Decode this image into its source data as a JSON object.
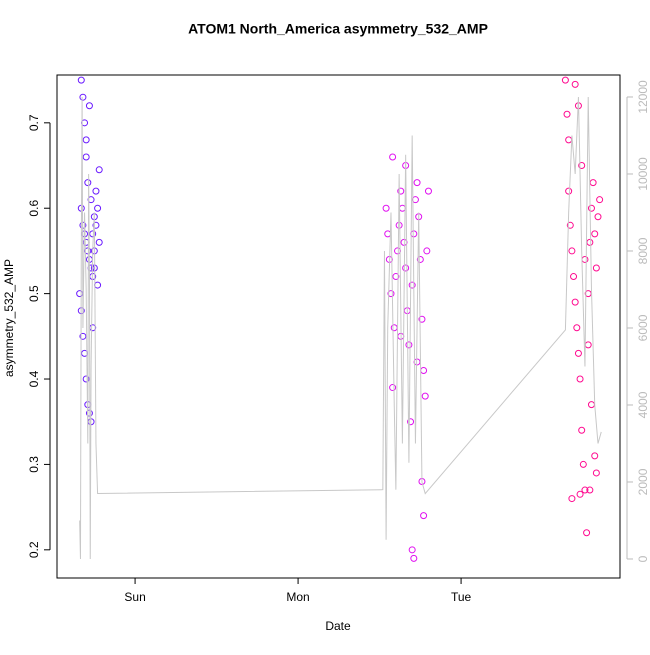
{
  "chart_data": {
    "type": "scatter",
    "title": "ATOM1 North_America asymmetry_532_AMP",
    "x_label": "Date",
    "y_label": "asymmetry_532_AMP",
    "xlim": [
      -0.479,
      2.975
    ],
    "xticks": [
      {
        "value": 0,
        "label": "Sun"
      },
      {
        "value": 1,
        "label": "Mon"
      },
      {
        "value": 2,
        "label": "Tue"
      }
    ],
    "ylim": [
      0.167,
      0.756
    ],
    "yticks": [
      0.2,
      0.3,
      0.4,
      0.5,
      0.6,
      0.7
    ],
    "y2lim": [
      -494,
      12571
    ],
    "y2ticks": [
      0,
      2000,
      4000,
      6000,
      8000,
      10000,
      12000
    ],
    "series": [
      {
        "color": "#6a1aff",
        "x": [
          -0.33,
          -0.32,
          -0.31,
          -0.3,
          -0.29,
          -0.33,
          -0.32,
          -0.31,
          -0.3,
          -0.29,
          -0.28,
          -0.27,
          -0.26,
          -0.25,
          -0.24,
          -0.23,
          -0.22,
          -0.34,
          -0.33,
          -0.32,
          -0.31,
          -0.3,
          -0.29,
          -0.28,
          -0.27,
          -0.26,
          -0.25,
          -0.24,
          -0.23,
          -0.22,
          -0.3,
          -0.28,
          -0.27,
          -0.26,
          -0.25
        ],
        "values": [
          0.75,
          0.73,
          0.7,
          0.66,
          0.63,
          0.6,
          0.58,
          0.57,
          0.56,
          0.55,
          0.54,
          0.53,
          0.52,
          0.55,
          0.58,
          0.6,
          0.56,
          0.5,
          0.48,
          0.45,
          0.43,
          0.4,
          0.37,
          0.36,
          0.35,
          0.46,
          0.59,
          0.62,
          0.51,
          0.645,
          0.68,
          0.72,
          0.61,
          0.57,
          0.53
        ]
      },
      {
        "color": "#e010f0",
        "x": [
          1.54,
          1.55,
          1.56,
          1.57,
          1.58,
          1.59,
          1.6,
          1.61,
          1.62,
          1.63,
          1.64,
          1.65,
          1.66,
          1.67,
          1.68,
          1.69,
          1.7,
          1.71,
          1.72,
          1.73,
          1.74,
          1.75,
          1.76,
          1.77,
          1.78,
          1.79,
          1.8,
          1.7,
          1.71,
          1.77,
          1.76,
          1.66,
          1.58,
          1.63,
          1.73
        ],
        "values": [
          0.6,
          0.57,
          0.54,
          0.5,
          0.39,
          0.46,
          0.52,
          0.55,
          0.58,
          0.62,
          0.6,
          0.56,
          0.53,
          0.48,
          0.44,
          0.35,
          0.51,
          0.57,
          0.61,
          0.63,
          0.59,
          0.54,
          0.47,
          0.41,
          0.38,
          0.55,
          0.62,
          0.2,
          0.19,
          0.24,
          0.28,
          0.65,
          0.66,
          0.45,
          0.42
        ]
      },
      {
        "color": "#ff0a90",
        "x": [
          2.64,
          2.65,
          2.66,
          2.67,
          2.68,
          2.69,
          2.7,
          2.71,
          2.72,
          2.73,
          2.74,
          2.75,
          2.76,
          2.77,
          2.78,
          2.79,
          2.8,
          2.81,
          2.82,
          2.83,
          2.84,
          2.85,
          2.7,
          2.72,
          2.74,
          2.76,
          2.78,
          2.8,
          2.82,
          2.83,
          2.68,
          2.66,
          2.79,
          2.73
        ],
        "values": [
          0.75,
          0.71,
          0.62,
          0.58,
          0.55,
          0.52,
          0.49,
          0.46,
          0.43,
          0.4,
          0.34,
          0.3,
          0.27,
          0.22,
          0.5,
          0.56,
          0.6,
          0.63,
          0.57,
          0.53,
          0.59,
          0.61,
          0.745,
          0.72,
          0.65,
          0.54,
          0.44,
          0.37,
          0.31,
          0.29,
          0.26,
          0.68,
          0.27,
          0.265
        ]
      },
      {
        "color": "#c8c8c8",
        "axis": "y2",
        "kind": "line",
        "x": [
          -0.34,
          -0.335,
          -0.33,
          -0.325,
          -0.32,
          -0.31,
          -0.3,
          -0.29,
          -0.285,
          -0.28,
          -0.275,
          -0.27,
          -0.26,
          -0.25,
          -0.24,
          -0.23,
          1.52,
          1.53,
          1.54,
          1.55,
          1.57,
          1.59,
          1.6,
          1.62,
          1.64,
          1.66,
          1.68,
          1.7,
          1.72,
          1.74,
          1.76,
          1.78,
          2.64,
          2.66,
          2.68,
          2.7,
          2.72,
          2.74,
          2.76,
          2.78,
          2.8,
          2.82,
          2.84,
          2.86
        ],
        "values": [
          1000,
          0,
          8000,
          12000,
          6000,
          9000,
          7000,
          3000,
          10000,
          7500,
          0,
          5000,
          8000,
          9000,
          3000,
          1700,
          1800,
          8000,
          500,
          6000,
          9000,
          4000,
          1800,
          10000,
          3000,
          10500,
          2500,
          11000,
          3000,
          9000,
          2000,
          1700,
          5950,
          9000,
          11000,
          10000,
          12000,
          8000,
          5000,
          12000,
          7000,
          4000,
          3000,
          3300
        ]
      }
    ]
  }
}
